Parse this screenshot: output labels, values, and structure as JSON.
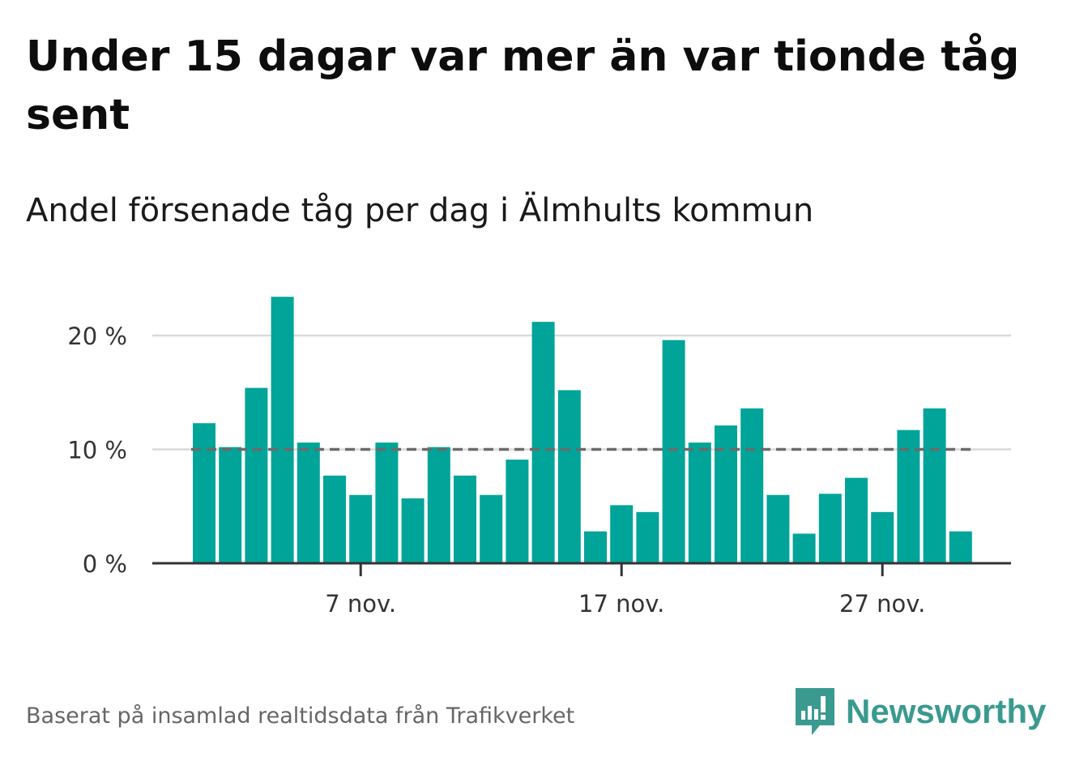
{
  "title": "Under 15 dagar var mer än var tionde tåg sent",
  "subtitle": "Andel försenade tåg per dag i Älmhults kommun",
  "source": "Baserat på insamlad realtidsdata från Trafikverket",
  "brand": {
    "name": "Newsworthy",
    "icon": "newsworthy-logo-icon",
    "color": "#3a9a8f"
  },
  "chart_data": {
    "type": "bar",
    "title": "Under 15 dagar var mer än var tionde tåg sent",
    "subtitle": "Andel försenade tåg per dag i Älmhults kommun",
    "x_start": "2023-11-01",
    "x": [
      "2023-11-01",
      "2023-11-02",
      "2023-11-03",
      "2023-11-04",
      "2023-11-05",
      "2023-11-06",
      "2023-11-07",
      "2023-11-08",
      "2023-11-09",
      "2023-11-10",
      "2023-11-11",
      "2023-11-12",
      "2023-11-13",
      "2023-11-14",
      "2023-11-15",
      "2023-11-16",
      "2023-11-17",
      "2023-11-18",
      "2023-11-19",
      "2023-11-20",
      "2023-11-21",
      "2023-11-22",
      "2023-11-23",
      "2023-11-24",
      "2023-11-25",
      "2023-11-26",
      "2023-11-27",
      "2023-11-28",
      "2023-11-29",
      "2023-11-30"
    ],
    "values": [
      12.3,
      10.2,
      15.4,
      23.4,
      10.6,
      7.7,
      6.0,
      10.6,
      5.7,
      10.2,
      7.7,
      6.0,
      9.1,
      21.2,
      15.2,
      2.8,
      5.1,
      4.5,
      19.6,
      10.6,
      12.1,
      13.6,
      6.0,
      2.6,
      6.1,
      7.5,
      4.5,
      11.7,
      13.6,
      2.8
    ],
    "ylim": [
      0,
      25
    ],
    "yticks": [
      0,
      10,
      20
    ],
    "ytick_labels": [
      "0 %",
      "10 %",
      "20 %"
    ],
    "xticks": [
      {
        "date": "2023-11-07",
        "label": "7 nov."
      },
      {
        "date": "2023-11-17",
        "label": "17 nov."
      },
      {
        "date": "2023-11-27",
        "label": "27 nov."
      }
    ],
    "reference_line": {
      "value": 10,
      "style": "dashed",
      "color": "#6b6b6b"
    },
    "bar_color": "#00a499",
    "grid": true,
    "xlabel": "",
    "ylabel": ""
  }
}
